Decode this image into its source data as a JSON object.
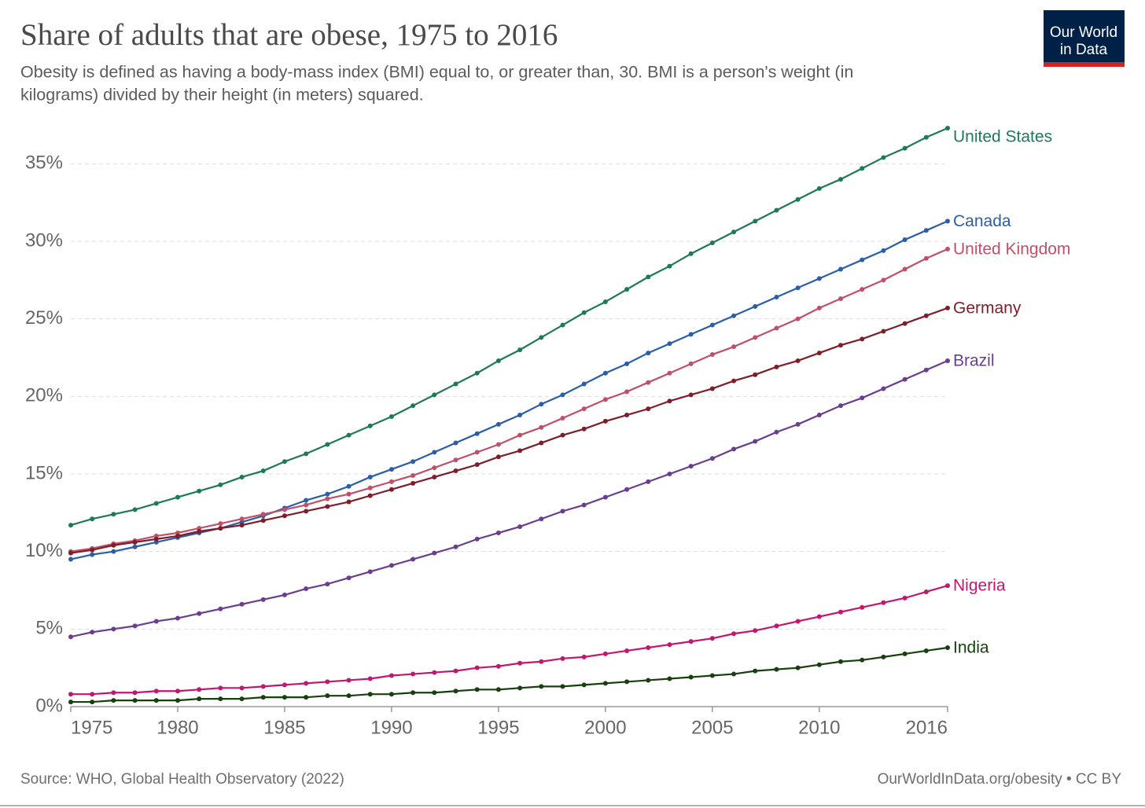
{
  "chart_data": {
    "type": "line",
    "title": "Share of adults that are obese, 1975 to 2016",
    "subtitle": [
      "Obesity is defined as having a body-mass index (BMI) equal to, or greater than, 30. BMI is a person's weight (in",
      "kilograms) divided by their height (in meters) squared."
    ],
    "logo": [
      "Our World",
      "in Data"
    ],
    "source": "Source: WHO, Global Health Observatory (2022)",
    "footer": "OurWorldInData.org/obesity • CC BY",
    "x": [
      1975,
      1976,
      1977,
      1978,
      1979,
      1980,
      1981,
      1982,
      1983,
      1984,
      1985,
      1986,
      1987,
      1988,
      1989,
      1990,
      1991,
      1992,
      1993,
      1994,
      1995,
      1996,
      1997,
      1998,
      1999,
      2000,
      2001,
      2002,
      2003,
      2004,
      2005,
      2006,
      2007,
      2008,
      2009,
      2010,
      2011,
      2012,
      2013,
      2014,
      2015,
      2016
    ],
    "xlim": [
      1975,
      2016
    ],
    "xticks": [
      1975,
      1980,
      1985,
      1990,
      1995,
      2000,
      2005,
      2010,
      2016
    ],
    "ylim": [
      0,
      37.5
    ],
    "yticks": [
      {
        "value": 0,
        "label": "0%"
      },
      {
        "value": 5,
        "label": "5%"
      },
      {
        "value": 10,
        "label": "10%"
      },
      {
        "value": 15,
        "label": "15%"
      },
      {
        "value": 20,
        "label": "20%"
      },
      {
        "value": 25,
        "label": "25%"
      },
      {
        "value": 30,
        "label": "30%"
      },
      {
        "value": 35,
        "label": "35%"
      }
    ],
    "grid": true,
    "series": [
      {
        "name": "United States",
        "color": "#1d7a55",
        "values": [
          11.7,
          12.1,
          12.4,
          12.7,
          13.1,
          13.5,
          13.9,
          14.3,
          14.8,
          15.2,
          15.8,
          16.3,
          16.9,
          17.5,
          18.1,
          18.7,
          19.4,
          20.1,
          20.8,
          21.5,
          22.3,
          23.0,
          23.8,
          24.6,
          25.4,
          26.1,
          26.9,
          27.7,
          28.4,
          29.2,
          29.9,
          30.6,
          31.3,
          32.0,
          32.7,
          33.4,
          34.0,
          34.7,
          35.4,
          36.0,
          36.7,
          37.3
        ]
      },
      {
        "name": "Canada",
        "color": "#2a5ea8",
        "values": [
          9.5,
          9.8,
          10.0,
          10.3,
          10.6,
          10.9,
          11.2,
          11.5,
          11.9,
          12.3,
          12.8,
          13.3,
          13.7,
          14.2,
          14.8,
          15.3,
          15.8,
          16.4,
          17.0,
          17.6,
          18.2,
          18.8,
          19.5,
          20.1,
          20.8,
          21.5,
          22.1,
          22.8,
          23.4,
          24.0,
          24.6,
          25.2,
          25.8,
          26.4,
          27.0,
          27.6,
          28.2,
          28.8,
          29.4,
          30.1,
          30.7,
          31.3
        ]
      },
      {
        "name": "United Kingdom",
        "color": "#c05068",
        "values": [
          10.0,
          10.2,
          10.5,
          10.7,
          11.0,
          11.2,
          11.5,
          11.8,
          12.1,
          12.4,
          12.7,
          13.0,
          13.4,
          13.7,
          14.1,
          14.5,
          14.9,
          15.4,
          15.9,
          16.4,
          16.9,
          17.5,
          18.0,
          18.6,
          19.2,
          19.8,
          20.3,
          20.9,
          21.5,
          22.1,
          22.7,
          23.2,
          23.8,
          24.4,
          25.0,
          25.7,
          26.3,
          26.9,
          27.5,
          28.2,
          28.9,
          29.5
        ]
      },
      {
        "name": "Germany",
        "color": "#7e1e2b",
        "values": [
          9.9,
          10.1,
          10.4,
          10.6,
          10.8,
          11.0,
          11.3,
          11.5,
          11.7,
          12.0,
          12.3,
          12.6,
          12.9,
          13.2,
          13.6,
          14.0,
          14.4,
          14.8,
          15.2,
          15.6,
          16.1,
          16.5,
          17.0,
          17.5,
          17.9,
          18.4,
          18.8,
          19.2,
          19.7,
          20.1,
          20.5,
          21.0,
          21.4,
          21.9,
          22.3,
          22.8,
          23.3,
          23.7,
          24.2,
          24.7,
          25.2,
          25.7
        ]
      },
      {
        "name": "Brazil",
        "color": "#6b3d8e",
        "values": [
          4.5,
          4.8,
          5.0,
          5.2,
          5.5,
          5.7,
          6.0,
          6.3,
          6.6,
          6.9,
          7.2,
          7.6,
          7.9,
          8.3,
          8.7,
          9.1,
          9.5,
          9.9,
          10.3,
          10.8,
          11.2,
          11.6,
          12.1,
          12.6,
          13.0,
          13.5,
          14.0,
          14.5,
          15.0,
          15.5,
          16.0,
          16.6,
          17.1,
          17.7,
          18.2,
          18.8,
          19.4,
          19.9,
          20.5,
          21.1,
          21.7,
          22.3
        ]
      },
      {
        "name": "Nigeria",
        "color": "#c3166e",
        "values": [
          0.8,
          0.8,
          0.9,
          0.9,
          1.0,
          1.0,
          1.1,
          1.2,
          1.2,
          1.3,
          1.4,
          1.5,
          1.6,
          1.7,
          1.8,
          2.0,
          2.1,
          2.2,
          2.3,
          2.5,
          2.6,
          2.8,
          2.9,
          3.1,
          3.2,
          3.4,
          3.6,
          3.8,
          4.0,
          4.2,
          4.4,
          4.7,
          4.9,
          5.2,
          5.5,
          5.8,
          6.1,
          6.4,
          6.7,
          7.0,
          7.4,
          7.8
        ]
      },
      {
        "name": "India",
        "color": "#17400f",
        "values": [
          0.3,
          0.3,
          0.4,
          0.4,
          0.4,
          0.4,
          0.5,
          0.5,
          0.5,
          0.6,
          0.6,
          0.6,
          0.7,
          0.7,
          0.8,
          0.8,
          0.9,
          0.9,
          1.0,
          1.1,
          1.1,
          1.2,
          1.3,
          1.3,
          1.4,
          1.5,
          1.6,
          1.7,
          1.8,
          1.9,
          2.0,
          2.1,
          2.3,
          2.4,
          2.5,
          2.7,
          2.9,
          3.0,
          3.2,
          3.4,
          3.6,
          3.8
        ]
      }
    ]
  }
}
